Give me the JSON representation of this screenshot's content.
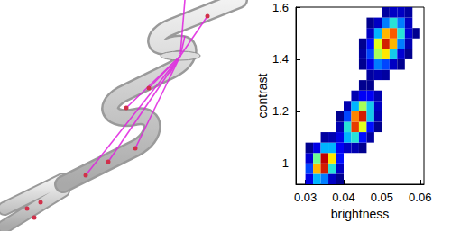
{
  "chart_data": {
    "type": "heatmap",
    "x_label": "brightness",
    "y_label": "contrast",
    "xlim": [
      0.0275,
      0.061
    ],
    "xticks": [
      0.03,
      0.04,
      0.05,
      0.06
    ],
    "ylim": [
      0.92,
      1.6
    ],
    "yticks": [
      1,
      1.2,
      1.4,
      1.6
    ],
    "tick_labels": true,
    "grid": false,
    "bin_size": [
      0.002,
      0.04
    ],
    "colors": [
      "#00008f",
      "#0000ff",
      "#00b4ff",
      "#40ffbf",
      "#ffff00",
      "#ff6000",
      "#c00000"
    ],
    "cells": [
      [
        0.031,
        0.94,
        6
      ],
      [
        0.033,
        0.94,
        14
      ],
      [
        0.035,
        0.94,
        12
      ],
      [
        0.037,
        0.94,
        4
      ],
      [
        0.039,
        0.94,
        1
      ],
      [
        0.031,
        0.98,
        10
      ],
      [
        0.033,
        0.98,
        30
      ],
      [
        0.035,
        0.98,
        38
      ],
      [
        0.037,
        0.98,
        18
      ],
      [
        0.039,
        0.98,
        4
      ],
      [
        0.031,
        1.02,
        5
      ],
      [
        0.033,
        1.02,
        22
      ],
      [
        0.035,
        1.02,
        40
      ],
      [
        0.037,
        1.02,
        28
      ],
      [
        0.039,
        1.02,
        8
      ],
      [
        0.031,
        1.06,
        1
      ],
      [
        0.033,
        1.06,
        6
      ],
      [
        0.035,
        1.06,
        14
      ],
      [
        0.037,
        1.06,
        14
      ],
      [
        0.039,
        1.06,
        7
      ],
      [
        0.041,
        1.06,
        4
      ],
      [
        0.043,
        1.06,
        3
      ],
      [
        0.045,
        1.06,
        1
      ],
      [
        0.035,
        1.1,
        2
      ],
      [
        0.037,
        1.1,
        3
      ],
      [
        0.039,
        1.1,
        6
      ],
      [
        0.041,
        1.1,
        14
      ],
      [
        0.043,
        1.1,
        18
      ],
      [
        0.045,
        1.1,
        8
      ],
      [
        0.047,
        1.1,
        2
      ],
      [
        0.039,
        1.14,
        3
      ],
      [
        0.041,
        1.14,
        18
      ],
      [
        0.043,
        1.14,
        36
      ],
      [
        0.045,
        1.14,
        26
      ],
      [
        0.047,
        1.14,
        8
      ],
      [
        0.049,
        1.14,
        1
      ],
      [
        0.039,
        1.18,
        1
      ],
      [
        0.041,
        1.18,
        10
      ],
      [
        0.043,
        1.18,
        32
      ],
      [
        0.045,
        1.18,
        38
      ],
      [
        0.047,
        1.18,
        16
      ],
      [
        0.049,
        1.18,
        3
      ],
      [
        0.041,
        1.22,
        3
      ],
      [
        0.043,
        1.22,
        14
      ],
      [
        0.045,
        1.22,
        24
      ],
      [
        0.047,
        1.22,
        16
      ],
      [
        0.049,
        1.22,
        4
      ],
      [
        0.043,
        1.26,
        3
      ],
      [
        0.045,
        1.26,
        7
      ],
      [
        0.047,
        1.26,
        7
      ],
      [
        0.049,
        1.26,
        3
      ],
      [
        0.045,
        1.3,
        1
      ],
      [
        0.047,
        1.3,
        1
      ],
      [
        0.047,
        1.34,
        2
      ],
      [
        0.049,
        1.34,
        3
      ],
      [
        0.051,
        1.34,
        2
      ],
      [
        0.045,
        1.38,
        1
      ],
      [
        0.047,
        1.38,
        6
      ],
      [
        0.049,
        1.38,
        12
      ],
      [
        0.051,
        1.38,
        10
      ],
      [
        0.053,
        1.38,
        4
      ],
      [
        0.055,
        1.38,
        1
      ],
      [
        0.045,
        1.42,
        2
      ],
      [
        0.047,
        1.42,
        10
      ],
      [
        0.049,
        1.42,
        24
      ],
      [
        0.051,
        1.42,
        28
      ],
      [
        0.053,
        1.42,
        16
      ],
      [
        0.055,
        1.42,
        5
      ],
      [
        0.057,
        1.42,
        1
      ],
      [
        0.045,
        1.46,
        1
      ],
      [
        0.047,
        1.46,
        8
      ],
      [
        0.049,
        1.46,
        26
      ],
      [
        0.051,
        1.46,
        38
      ],
      [
        0.053,
        1.46,
        30
      ],
      [
        0.055,
        1.46,
        12
      ],
      [
        0.057,
        1.46,
        3
      ],
      [
        0.047,
        1.5,
        4
      ],
      [
        0.049,
        1.5,
        14
      ],
      [
        0.051,
        1.5,
        30
      ],
      [
        0.053,
        1.5,
        34
      ],
      [
        0.055,
        1.5,
        18
      ],
      [
        0.057,
        1.5,
        5
      ],
      [
        0.059,
        1.5,
        1
      ],
      [
        0.047,
        1.54,
        1
      ],
      [
        0.049,
        1.54,
        4
      ],
      [
        0.051,
        1.54,
        12
      ],
      [
        0.053,
        1.54,
        18
      ],
      [
        0.055,
        1.54,
        12
      ],
      [
        0.057,
        1.54,
        4
      ],
      [
        0.051,
        1.58,
        2
      ],
      [
        0.053,
        1.58,
        4
      ],
      [
        0.055,
        1.58,
        4
      ],
      [
        0.057,
        1.58,
        2
      ]
    ]
  }
}
